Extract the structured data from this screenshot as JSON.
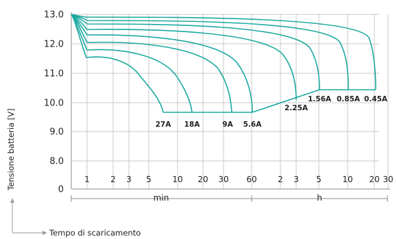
{
  "chart_data": {
    "type": "line",
    "ylabel": "Tensione batteria [V]",
    "xlabel": "Tempo di scaricamento",
    "y_ticks": [
      "13.0",
      "12.0",
      "11.0",
      "10.0",
      "9.0",
      "8.0",
      "0"
    ],
    "x_ticks": [
      "1",
      "2",
      "3",
      "5",
      "10",
      "20",
      "30",
      "60",
      "2",
      "3",
      "5",
      "10",
      "20",
      "30"
    ],
    "x_units": [
      "min",
      "h"
    ],
    "grid": true,
    "series": [
      {
        "name": "27A",
        "end_x": "7 min",
        "end_v": 9.65
      },
      {
        "name": "18A",
        "end_x": "14 min",
        "end_v": 9.65
      },
      {
        "name": "9A",
        "end_x": "34 min",
        "end_v": 9.65
      },
      {
        "name": "5.6A",
        "end_x": "60 min",
        "end_v": 9.65
      },
      {
        "name": "2.25A",
        "end_x": "3 h",
        "end_v": 10.15
      },
      {
        "name": "1.56A",
        "end_x": "5 h",
        "end_v": 10.45
      },
      {
        "name": "0.85A",
        "end_x": "10 h",
        "end_v": 10.45
      },
      {
        "name": "0.45A",
        "end_x": "20 h",
        "end_v": 10.45
      }
    ]
  }
}
